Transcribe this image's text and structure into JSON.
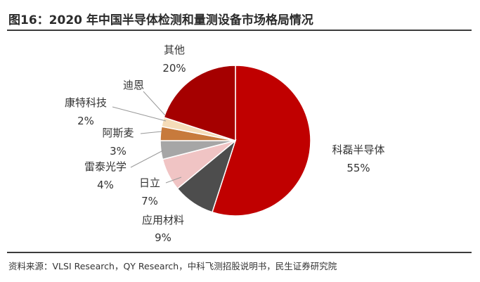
{
  "header": {
    "title": "图16：2020 年中国半导体检测和量测设备市场格局情况"
  },
  "footer": {
    "source": "资料来源：VLSI Research，QY Research，中科飞测招股说明书，民生证券研究院"
  },
  "chart_data": {
    "type": "pie",
    "title": "图16：2020 年中国半导体检测和量测设备市场格局情况",
    "legend": "none",
    "slices": [
      {
        "label": "科磊半导体",
        "value": 55,
        "value_label": "55%",
        "color": "#c00000"
      },
      {
        "label": "应用材料",
        "value": 9,
        "value_label": "9%",
        "color": "#4d4d4d"
      },
      {
        "label": "日立",
        "value": 7,
        "value_label": "7%",
        "color": "#f0c4c4"
      },
      {
        "label": "雷泰光学",
        "value": 4,
        "value_label": "4%",
        "color": "#a6a6a6"
      },
      {
        "label": "阿斯麦",
        "value": 3,
        "value_label": "3%",
        "color": "#c77a3c"
      },
      {
        "label": "康特科技",
        "value": 2,
        "value_label": "2%",
        "color": "#f5dcb8"
      },
      {
        "label": "迪恩",
        "value": 0,
        "value_label": "",
        "color": "#ffffff"
      },
      {
        "label": "其他",
        "value": 20,
        "value_label": "20%",
        "color": "#a50000"
      }
    ]
  }
}
